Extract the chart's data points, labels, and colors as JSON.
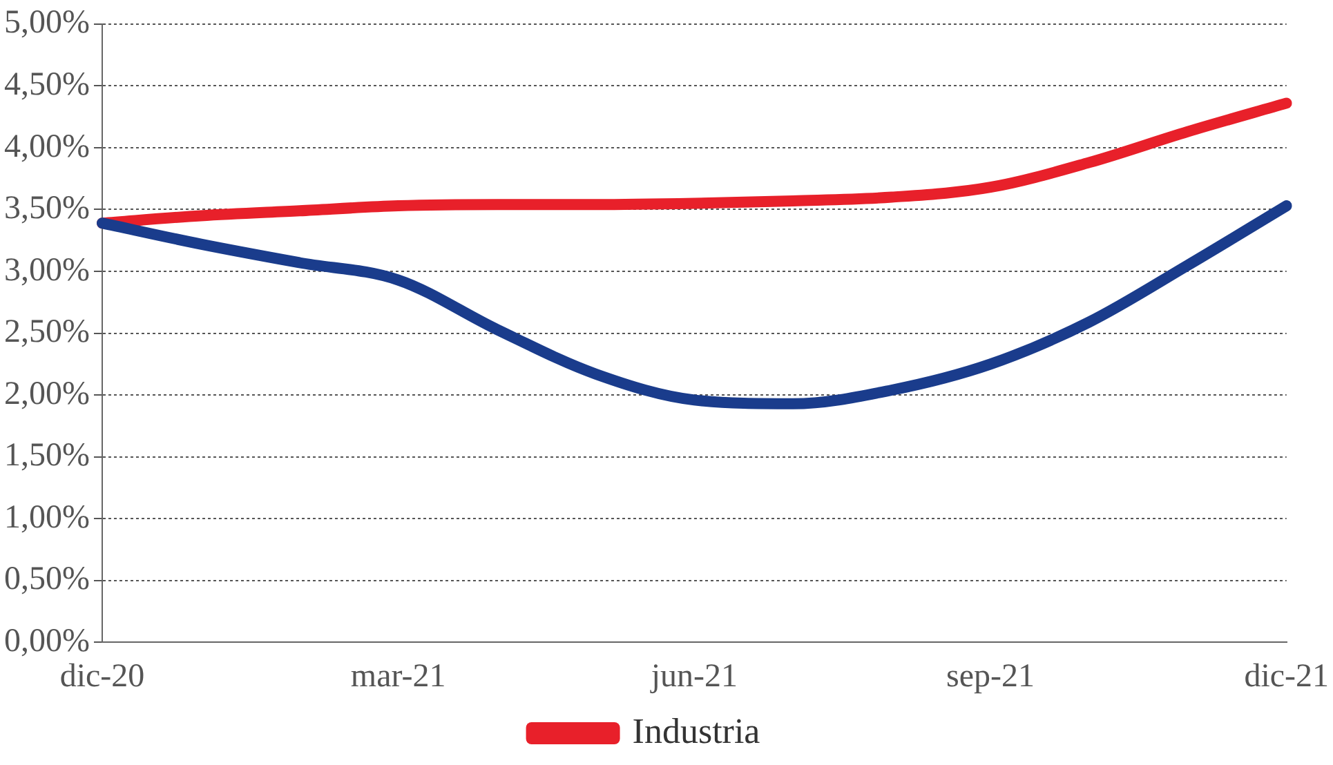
{
  "chart_data": {
    "type": "line",
    "categories": [
      "dic-20",
      null,
      null,
      "mar-21",
      null,
      null,
      "jun-21",
      null,
      null,
      "sep-21",
      null,
      null,
      "dic-21"
    ],
    "series": [
      {
        "color": "#1a3c8c",
        "values": [
          3.39,
          3.22,
          3.07,
          2.93,
          2.53,
          2.17,
          1.96,
          1.93,
          2.04,
          2.25,
          2.59,
          3.05,
          3.53
        ]
      },
      {
        "name": "Industria",
        "color": "#e8202a",
        "values": [
          3.39,
          3.45,
          3.49,
          3.53,
          3.54,
          3.54,
          3.55,
          3.57,
          3.6,
          3.68,
          3.88,
          4.13,
          4.36
        ]
      }
    ],
    "ylim": [
      0,
      5
    ],
    "yticks": [
      {
        "value": 0,
        "label": "0,00%"
      },
      {
        "value": 0.5,
        "label": "0,50%"
      },
      {
        "value": 1,
        "label": "1,00%"
      },
      {
        "value": 1.5,
        "label": "1,50%"
      },
      {
        "value": 2,
        "label": "2,00%"
      },
      {
        "value": 2.5,
        "label": "2,50%"
      },
      {
        "value": 3,
        "label": "3,00%"
      },
      {
        "value": 3.5,
        "label": "3,50%"
      },
      {
        "value": 4,
        "label": "4,00%"
      },
      {
        "value": 4.5,
        "label": "4,50%"
      },
      {
        "value": 5,
        "label": "5,00%"
      }
    ],
    "grid": "y",
    "legend": "bottom",
    "marker": "none",
    "line_style": "solid"
  }
}
